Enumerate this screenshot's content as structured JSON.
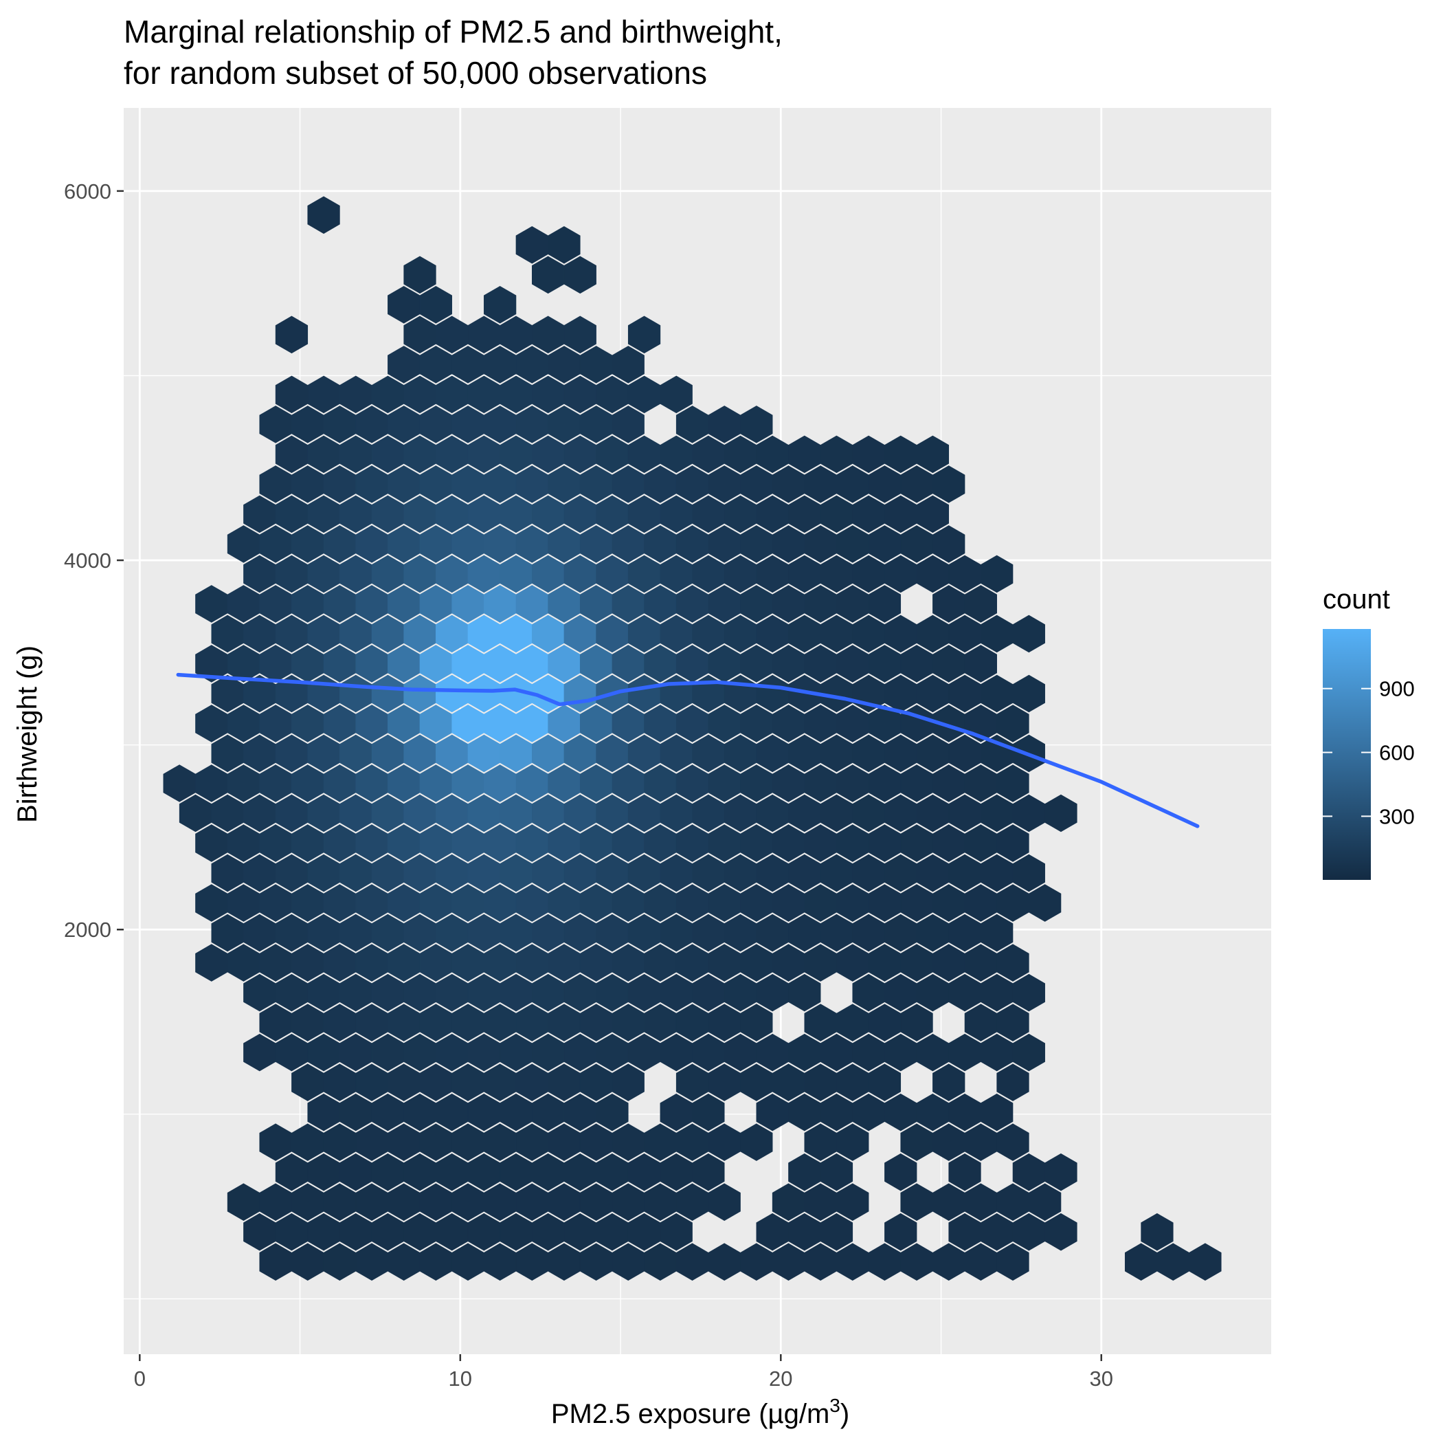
{
  "chart_data": {
    "type": "hexbin",
    "title_lines": [
      "Marginal relationship of PM2.5 and birthweight,",
      "for random subset of 50,000 observations"
    ],
    "xlabel": {
      "main": "PM2.5 exposure (µg/m",
      "sup": "3",
      "close": ")"
    },
    "ylabel": "Birthweight (g)",
    "xlim": [
      -0.5,
      35.3
    ],
    "ylim": [
      -300,
      6450
    ],
    "x_ticks": [
      {
        "value": 0,
        "label": "0"
      },
      {
        "value": 10,
        "label": "10"
      },
      {
        "value": 20,
        "label": "20"
      },
      {
        "value": 30,
        "label": "30"
      }
    ],
    "y_ticks": [
      {
        "value": 2000,
        "label": "2000"
      },
      {
        "value": 4000,
        "label": "4000"
      },
      {
        "value": 6000,
        "label": "6000"
      }
    ],
    "x_minor_breaks": [
      5,
      15,
      25
    ],
    "y_minor_breaks": [
      0,
      1000,
      3000,
      5000
    ],
    "legend": {
      "title": "count",
      "position": "right",
      "range": [
        1,
        1180
      ],
      "breaks": [
        {
          "value": 300,
          "label": "300"
        },
        {
          "value": 600,
          "label": "600"
        },
        {
          "value": 900,
          "label": "900"
        }
      ],
      "low_color": "#132B43",
      "high_color": "#56B1F7"
    },
    "hex_grid": {
      "x0": 0.24,
      "dx": 1.0,
      "y0": 200,
      "dy": 162,
      "n_cols": 36,
      "n_rows": 36
    },
    "density_model": {
      "background_count": 45,
      "peak": {
        "x": 11.3,
        "y": 3350,
        "count": 1150,
        "sx": 1.6,
        "sy": 280
      },
      "halo": {
        "x": 10.8,
        "y": 3300,
        "count": 420,
        "sx": 3.2,
        "sy": 700
      },
      "outer": {
        "x": 10.5,
        "y": 3200,
        "count": 140,
        "sx": 5.5,
        "sy": 1200
      },
      "tail": {
        "x": 20,
        "y": 3300,
        "count": 25,
        "sx": 7,
        "sy": 1300
      }
    },
    "smooth_line": {
      "color": "#3366FF",
      "x": [
        1.2,
        3,
        5,
        7,
        8.5,
        10,
        11,
        11.7,
        12.4,
        13.1,
        14,
        15,
        16.5,
        18,
        20,
        22,
        24,
        26,
        28,
        30,
        33
      ],
      "y": [
        3380,
        3360,
        3340,
        3315,
        3300,
        3295,
        3293,
        3300,
        3270,
        3220,
        3240,
        3290,
        3330,
        3340,
        3310,
        3250,
        3170,
        3060,
        2930,
        2800,
        2560
      ]
    }
  }
}
